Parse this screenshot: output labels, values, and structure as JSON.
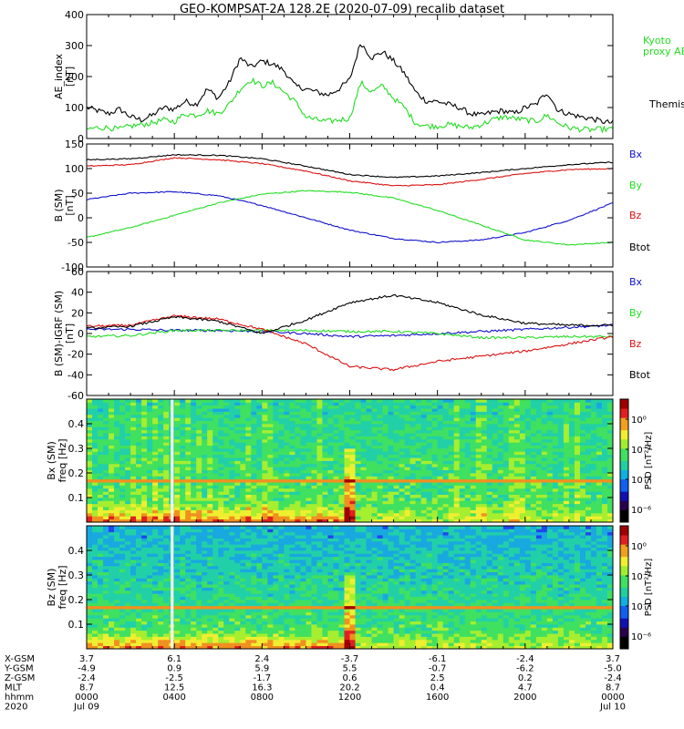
{
  "title": "GEO-KOMPSAT-2A 128.2E (2020-07-09) recalib dataset",
  "colors": {
    "black": "#000000",
    "green": "#22dd22",
    "red": "#dd1111",
    "blue": "#1111cc",
    "background": "#ffffff"
  },
  "chart_data": [
    {
      "id": "ae",
      "type": "line",
      "ylabel": "AE_index\n[nT]",
      "ylim": [
        0,
        400
      ],
      "yticks": [
        "0",
        "100",
        "200",
        "300",
        "400"
      ],
      "x": [
        0,
        0.5,
        1,
        1.5,
        2,
        2.5,
        3,
        3.5,
        4,
        4.5,
        5,
        5.5,
        6,
        6.5,
        7,
        7.5,
        8,
        8.5,
        9,
        9.5,
        10,
        10.5,
        11,
        11.5,
        12,
        12.5,
        13,
        13.5,
        14,
        14.5,
        15,
        15.5,
        16,
        16.5,
        17,
        17.5,
        18,
        18.5,
        19,
        19.5,
        20,
        20.5,
        21,
        21.5,
        22,
        22.5,
        23,
        23.5,
        24
      ],
      "series": [
        {
          "name": "Themis AE",
          "color": "black",
          "values": [
            100,
            90,
            80,
            95,
            70,
            60,
            75,
            100,
            95,
            120,
            110,
            160,
            130,
            180,
            260,
            230,
            250,
            240,
            220,
            170,
            160,
            150,
            140,
            160,
            190,
            310,
            260,
            280,
            250,
            210,
            150,
            120,
            120,
            110,
            100,
            80,
            75,
            85,
            90,
            80,
            100,
            110,
            150,
            90,
            80,
            70,
            65,
            55,
            50
          ]
        },
        {
          "name": "Kyoto proxy AE",
          "color": "green",
          "values": [
            30,
            35,
            35,
            30,
            40,
            45,
            50,
            60,
            55,
            80,
            75,
            90,
            80,
            110,
            160,
            190,
            170,
            180,
            150,
            120,
            70,
            60,
            55,
            60,
            65,
            180,
            150,
            170,
            130,
            100,
            50,
            40,
            40,
            45,
            40,
            35,
            45,
            60,
            70,
            65,
            60,
            55,
            75,
            50,
            35,
            30,
            28,
            30,
            30
          ]
        }
      ]
    },
    {
      "id": "b",
      "type": "line",
      "ylabel": "B (SM)\n[nT]",
      "ylim": [
        -100,
        150
      ],
      "yticks": [
        "-100",
        "-50",
        "0",
        "50",
        "100",
        "150"
      ],
      "x": [
        0,
        2,
        4,
        6,
        8,
        10,
        12,
        14,
        16,
        18,
        20,
        22,
        24
      ],
      "series": [
        {
          "name": "Bx",
          "color": "blue",
          "values": [
            37,
            50,
            53,
            45,
            25,
            0,
            -25,
            -42,
            -50,
            -45,
            -30,
            -5,
            30
          ]
        },
        {
          "name": "By",
          "color": "green",
          "values": [
            -40,
            -20,
            5,
            30,
            48,
            55,
            52,
            40,
            15,
            -15,
            -45,
            -55,
            -50
          ]
        },
        {
          "name": "Bz",
          "color": "red",
          "values": [
            105,
            108,
            122,
            118,
            110,
            95,
            75,
            65,
            67,
            78,
            90,
            98,
            100
          ]
        },
        {
          "name": "Btot",
          "color": "black",
          "values": [
            118,
            120,
            128,
            127,
            120,
            105,
            88,
            82,
            85,
            92,
            100,
            108,
            113
          ]
        }
      ]
    },
    {
      "id": "dB",
      "type": "line",
      "ylabel": "B (SM)-IGRF (SM)\n[nT]",
      "ylim": [
        -60,
        60
      ],
      "yticks": [
        "-60",
        "-40",
        "-20",
        "0",
        "20",
        "40",
        "60"
      ],
      "x": [
        0,
        2,
        4,
        6,
        8,
        10,
        12,
        14,
        16,
        18,
        20,
        22,
        24
      ],
      "series": [
        {
          "name": "Bx",
          "color": "blue",
          "values": [
            4,
            4,
            3,
            3,
            2,
            0,
            -3,
            -2,
            0,
            2,
            4,
            6,
            8
          ]
        },
        {
          "name": "By",
          "color": "green",
          "values": [
            -3,
            -2,
            3,
            3,
            3,
            3,
            2,
            2,
            0,
            -4,
            -4,
            -3,
            -3
          ]
        },
        {
          "name": "Bz",
          "color": "red",
          "values": [
            7,
            8,
            17,
            14,
            4,
            -10,
            -32,
            -35,
            -27,
            -22,
            -17,
            -10,
            -3
          ]
        },
        {
          "name": "Btot",
          "color": "black",
          "values": [
            5,
            7,
            16,
            12,
            0,
            13,
            30,
            37,
            30,
            18,
            10,
            8,
            8
          ]
        }
      ]
    },
    {
      "id": "bxspec",
      "type": "heatmap",
      "ylabel": "Bx (SM)\nfreq [Hz]",
      "yrange": [
        0,
        0.5
      ],
      "yticks": [
        "0.1",
        "0.2",
        "0.3",
        "0.4"
      ],
      "colorbar": {
        "label": "PSD [nT²/Hz]",
        "ticks": [
          "10⁰",
          "10⁻²",
          "10⁻⁴",
          "10⁻⁶"
        ]
      },
      "features": {
        "data_gap_hour": 3.9,
        "harmonic_line_hz": 0.167,
        "burst_hour": 12.0
      }
    },
    {
      "id": "bzspec",
      "type": "heatmap",
      "ylabel": "Bz (SM)\nfreq [Hz]",
      "yrange": [
        0,
        0.5
      ],
      "yticks": [
        "0.1",
        "0.2",
        "0.3",
        "0.4"
      ],
      "colorbar": {
        "label": "PSD [nT²/Hz]",
        "ticks": [
          "10⁰",
          "10⁻²",
          "10⁻⁴",
          "10⁻⁶"
        ]
      },
      "features": {
        "data_gap_hour": 3.9,
        "harmonic_line_hz": 0.167,
        "burst_hour": 12.0
      }
    }
  ],
  "legends": {
    "ae": [
      {
        "text": "Kyoto\nproxy AE",
        "color": "green"
      },
      {
        "text": "Themis AE",
        "color": "black"
      }
    ],
    "b": [
      {
        "text": "Bx",
        "color": "blue"
      },
      {
        "text": "By",
        "color": "green"
      },
      {
        "text": "Bz",
        "color": "red"
      },
      {
        "text": "Btot",
        "color": "black"
      }
    ],
    "dB": [
      {
        "text": "Bx",
        "color": "blue"
      },
      {
        "text": "By",
        "color": "green"
      },
      {
        "text": "Bz",
        "color": "red"
      },
      {
        "text": "Btot",
        "color": "black"
      }
    ]
  },
  "ephemeris": {
    "labels": [
      "X-GSM",
      "Y-GSM",
      "Z-GSM",
      "MLT",
      "hhmm",
      "2020"
    ],
    "columns": [
      [
        "3.7",
        "-4.9",
        "-2.4",
        "8.7",
        "0000",
        "Jul 09"
      ],
      [
        "6.1",
        "0.9",
        "-2.5",
        "12.5",
        "0400",
        ""
      ],
      [
        "2.4",
        "5.9",
        "-1.7",
        "16.3",
        "0800",
        ""
      ],
      [
        "-3.7",
        "5.5",
        "0.6",
        "20.2",
        "1200",
        ""
      ],
      [
        "-6.1",
        "-0.7",
        "2.5",
        "0.4",
        "1600",
        ""
      ],
      [
        "-2.4",
        "-6.2",
        "0.2",
        "4.7",
        "2000",
        ""
      ],
      [
        "3.7",
        "-5.0",
        "-2.4",
        "8.7",
        "0000",
        "Jul 10"
      ]
    ]
  }
}
